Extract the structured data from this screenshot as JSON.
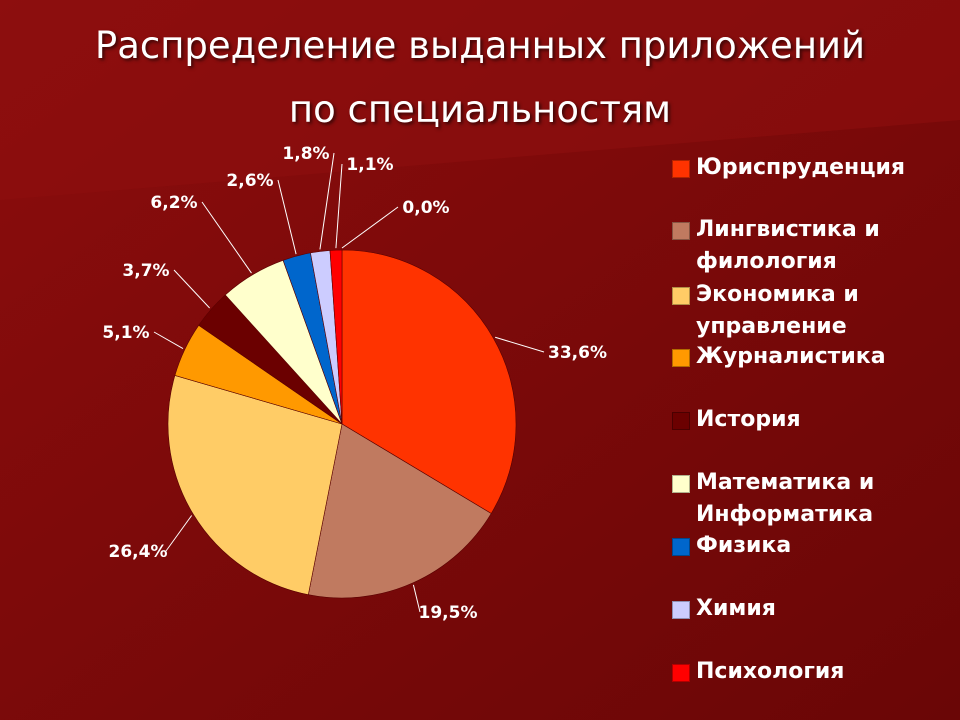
{
  "title_line1": "Распределение выданных приложений",
  "title_line2": "по специальностям",
  "colors": {
    "background": "#7a0a0a",
    "background_light": "#8a0c0c",
    "label_text": "#ffffff",
    "leader_line": "#ffffff"
  },
  "chart_data": {
    "type": "pie",
    "title": "Распределение выданных приложений по специальностям",
    "legend_position": "right",
    "slices": [
      {
        "label": "Юриспруденция",
        "value": 33.6,
        "value_label": "33,6%",
        "color": "#ff3300"
      },
      {
        "label": "Лингвистика и филология",
        "value": 19.5,
        "value_label": "19,5%",
        "color": "#c07a60"
      },
      {
        "label": "Экономика и управление",
        "value": 26.4,
        "value_label": "26,4%",
        "color": "#ffcc66"
      },
      {
        "label": "Журналистика",
        "value": 5.1,
        "value_label": "5,1%",
        "color": "#ff9900"
      },
      {
        "label": "История",
        "value": 3.7,
        "value_label": "3,7%",
        "color": "#6b0000"
      },
      {
        "label": "Математика и Информатика",
        "value": 6.2,
        "value_label": "6,2%",
        "color": "#ffffcc"
      },
      {
        "label": "Физика",
        "value": 2.6,
        "value_label": "2,6%",
        "color": "#0066cc"
      },
      {
        "label": "Химия",
        "value": 1.8,
        "value_label": "1,8%",
        "color": "#ccccff"
      },
      {
        "label": "Психология",
        "value": 1.1,
        "value_label": "1,1%",
        "color": "#ff0000"
      },
      {
        "label": "",
        "value": 0.0,
        "value_label": "0,0%",
        "color": "#ff0000"
      }
    ]
  },
  "legend": [
    {
      "line1": "Юриспруденция",
      "line2": "",
      "color": "#ff3300"
    },
    {
      "line1": "Лингвистика и",
      "line2": "филология",
      "color": "#c07a60"
    },
    {
      "line1": "Экономика и",
      "line2": "управление",
      "color": "#ffcc66"
    },
    {
      "line1": "Журналистика",
      "line2": "",
      "color": "#ff9900"
    },
    {
      "line1": "История",
      "line2": "",
      "color": "#6b0000"
    },
    {
      "line1": "Математика и",
      "line2": "Информатика",
      "color": "#ffffcc"
    },
    {
      "line1": "Физика",
      "line2": "",
      "color": "#0066cc"
    },
    {
      "line1": "Химия",
      "line2": "",
      "color": "#ccccff"
    },
    {
      "line1": "Психология",
      "line2": "",
      "color": "#ff0000"
    }
  ]
}
